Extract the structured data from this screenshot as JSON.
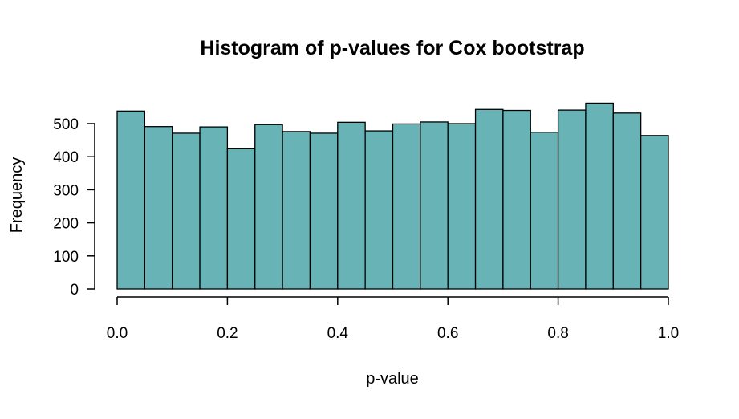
{
  "chart_data": {
    "type": "bar",
    "title": "Histogram of p-values for Cox bootstrap",
    "xlabel": "p-value",
    "ylabel": "Frequency",
    "bin_edges": [
      0.0,
      0.05,
      0.1,
      0.15,
      0.2,
      0.25,
      0.3,
      0.35,
      0.4,
      0.45,
      0.5,
      0.55,
      0.6,
      0.65,
      0.7,
      0.75,
      0.8,
      0.85,
      0.9,
      0.95,
      1.0
    ],
    "values": [
      538,
      491,
      471,
      490,
      424,
      497,
      476,
      471,
      504,
      478,
      499,
      505,
      500,
      543,
      540,
      474,
      541,
      562,
      532,
      464
    ],
    "xlim": [
      0.0,
      1.0
    ],
    "ylim": [
      0,
      580
    ],
    "x_ticks": [
      0.0,
      0.2,
      0.4,
      0.6,
      0.8,
      1.0
    ],
    "x_tick_labels": [
      "0.0",
      "0.2",
      "0.4",
      "0.6",
      "0.8",
      "1.0"
    ],
    "y_ticks": [
      0,
      100,
      200,
      300,
      400,
      500
    ],
    "y_tick_labels": [
      "0",
      "100",
      "200",
      "300",
      "400",
      "500"
    ],
    "bar_color": "#68b3b5",
    "edge_color": "#000000",
    "grid": false,
    "legend": "none"
  }
}
